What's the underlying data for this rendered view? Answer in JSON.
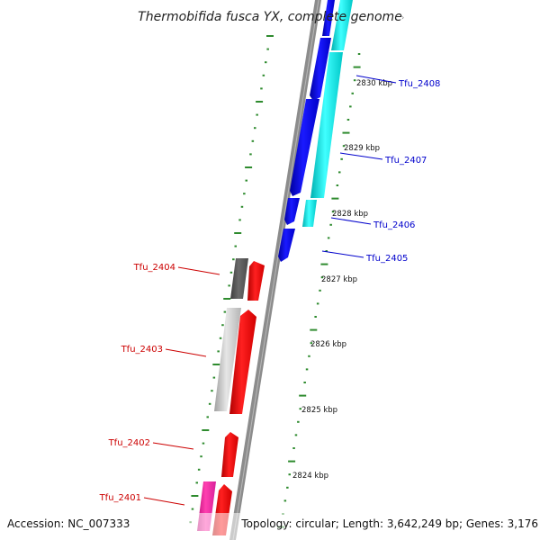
{
  "title": "Thermobifida fusca YX, complete genome",
  "footer": {
    "accession": "Accession: NC_007333",
    "summary": "Topology: circular; Length: 3,642,249 bp; Genes: 3,176"
  },
  "colors": {
    "backbone": "#8c8c8c",
    "tick": "#2e8b2e",
    "forward_label": "#cc0000",
    "reverse_label": "#0000cc"
  },
  "scale_labels": [
    "2830 kbp",
    "2829 kbp",
    "2828 kbp",
    "2827 kbp",
    "2826 kbp",
    "2825 kbp",
    "2824 kbp"
  ],
  "genes": [
    {
      "label": "Tfu_2408",
      "strand": "reverse"
    },
    {
      "label": "Tfu_2407",
      "strand": "reverse"
    },
    {
      "label": "Tfu_2406",
      "strand": "reverse"
    },
    {
      "label": "Tfu_2405",
      "strand": "reverse"
    },
    {
      "label": "Tfu_2404",
      "strand": "forward"
    },
    {
      "label": "Tfu_2403",
      "strand": "forward"
    },
    {
      "label": "Tfu_2402",
      "strand": "forward"
    },
    {
      "label": "Tfu_2401",
      "strand": "forward"
    }
  ]
}
